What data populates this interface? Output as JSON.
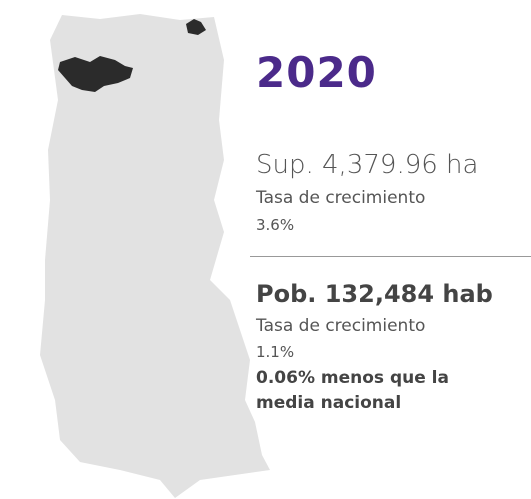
{
  "year": "2020",
  "surface": {
    "label": "Sup. 4,379.96 ha",
    "rate_label": "Tasa de crecimiento",
    "rate": "3.6%"
  },
  "population": {
    "label": "Pob. 132,484 hab",
    "rate_label": "Tasa de crecimiento",
    "rate": "1.1%",
    "note": [
      "0.06% menos que la",
      "media nacional"
    ]
  }
}
